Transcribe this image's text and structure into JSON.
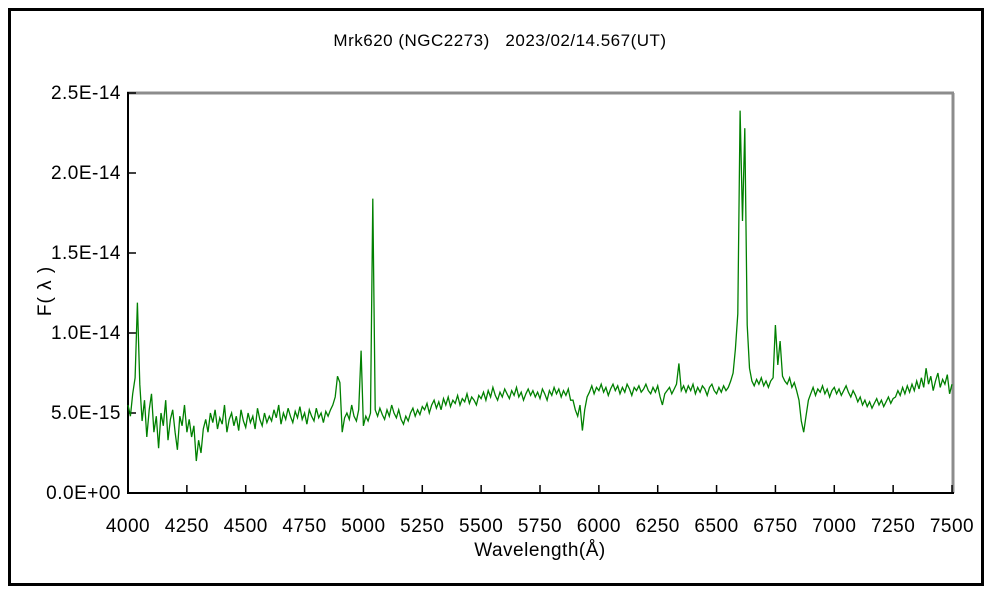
{
  "window": {
    "background_color": "#ffffff",
    "border_color": "#000000"
  },
  "chart": {
    "title": "Mrk620 (NGC2273)   2023/02/14.567(UT)",
    "line_color": "#008000",
    "axis_color": "#000000",
    "frame_color": "#8c8c8c",
    "x_axis": {
      "label": "Wavelength(Å)",
      "ticks": [
        {
          "value": 4000,
          "label": "4000"
        },
        {
          "value": 4250,
          "label": "4250"
        },
        {
          "value": 4500,
          "label": "4500"
        },
        {
          "value": 4750,
          "label": "4750"
        },
        {
          "value": 5000,
          "label": "5000"
        },
        {
          "value": 5250,
          "label": "5250"
        },
        {
          "value": 5500,
          "label": "5500"
        },
        {
          "value": 5750,
          "label": "5750"
        },
        {
          "value": 6000,
          "label": "6000"
        },
        {
          "value": 6250,
          "label": "6250"
        },
        {
          "value": 6500,
          "label": "6500"
        },
        {
          "value": 6750,
          "label": "6750"
        },
        {
          "value": 7000,
          "label": "7000"
        },
        {
          "value": 7250,
          "label": "7250"
        },
        {
          "value": 7500,
          "label": "7500"
        }
      ]
    },
    "y_axis": {
      "label": "F( λ )",
      "ticks": [
        {
          "value_1e16": 0,
          "label": "0.0E+00"
        },
        {
          "value_1e16": 50,
          "label": "5.0E-15"
        },
        {
          "value_1e16": 100,
          "label": "1.0E-14"
        },
        {
          "value_1e16": 150,
          "label": "1.5E-14"
        },
        {
          "value_1e16": 200,
          "label": "2.0E-14"
        },
        {
          "value_1e16": 250,
          "label": "2.5E-14"
        }
      ]
    }
  },
  "chart_data": {
    "type": "line",
    "title": "Mrk620 (NGC2273)   2023/02/14.567(UT)",
    "xlabel": "Wavelength(Å)",
    "ylabel": "F( λ )",
    "xlim": [
      4000,
      7500
    ],
    "ylim": [
      0,
      2.5e-14
    ],
    "grid": false,
    "legend": "none",
    "series_name": "Mrk620 spectrum",
    "x_start": 4000,
    "x_step": 10,
    "flux_scale": 1e-16,
    "notable_features": [
      {
        "wavelength": 4040,
        "flux": 1.19e-14,
        "kind": "noise spike"
      },
      {
        "wavelength": 4290,
        "flux": 2e-15,
        "kind": "absorption minimum (G band)"
      },
      {
        "wavelength": 4890,
        "flux": 7.3e-15,
        "kind": "Hβ emission"
      },
      {
        "wavelength": 4990,
        "flux": 8.9e-15,
        "kind": "[OIII]4959 emission"
      },
      {
        "wavelength": 5040,
        "flux": 1.84e-14,
        "kind": "[OIII]5007 emission"
      },
      {
        "wavelength": 5930,
        "flux": 3.9e-15,
        "kind": "Na D absorption"
      },
      {
        "wavelength": 6340,
        "flux": 8.1e-15,
        "kind": "[OI]6300 emission"
      },
      {
        "wavelength": 6600,
        "flux": 2.39e-14,
        "kind": "Hα emission peak"
      },
      {
        "wavelength": 6620,
        "flux": 2.28e-14,
        "kind": "[NII]6584 emission peak"
      },
      {
        "wavelength": 6750,
        "flux": 1.05e-14,
        "kind": "[SII] doublet"
      },
      {
        "wavelength": 6870,
        "flux": 3.8e-15,
        "kind": "atmospheric B-band absorption"
      }
    ],
    "flux_1e16": [
      55,
      48,
      62,
      72,
      119,
      68,
      45,
      58,
      35,
      52,
      62,
      38,
      48,
      28,
      50,
      42,
      58,
      33,
      46,
      52,
      38,
      27,
      48,
      42,
      55,
      38,
      46,
      35,
      42,
      20,
      33,
      25,
      40,
      46,
      38,
      50,
      44,
      52,
      40,
      47,
      43,
      55,
      38,
      46,
      50,
      42,
      48,
      39,
      52,
      45,
      41,
      50,
      44,
      48,
      40,
      53,
      46,
      42,
      50,
      44,
      48,
      45,
      52,
      47,
      55,
      43,
      50,
      46,
      53,
      48,
      44,
      51,
      47,
      54,
      46,
      50,
      43,
      52,
      48,
      45,
      53,
      47,
      50,
      44,
      51,
      48,
      52,
      55,
      60,
      73,
      69,
      38,
      47,
      50,
      46,
      55,
      48,
      45,
      52,
      89,
      42,
      48,
      45,
      50,
      184,
      52,
      48,
      53,
      49,
      46,
      52,
      48,
      55,
      50,
      47,
      52,
      46,
      43,
      48,
      45,
      50,
      53,
      48,
      52,
      49,
      54,
      52,
      56,
      50,
      55,
      58,
      53,
      57,
      52,
      59,
      55,
      60,
      54,
      58,
      56,
      61,
      55,
      59,
      57,
      62,
      56,
      60,
      58,
      55,
      61,
      59,
      63,
      58,
      64,
      60,
      66,
      61,
      58,
      63,
      60,
      65,
      62,
      59,
      64,
      61,
      66,
      60,
      63,
      58,
      62,
      65,
      61,
      64,
      60,
      63,
      59,
      65,
      62,
      58,
      64,
      61,
      66,
      62,
      65,
      60,
      64,
      61,
      65,
      58,
      58,
      52,
      48,
      55,
      39,
      52,
      60,
      63,
      67,
      62,
      66,
      64,
      68,
      63,
      66,
      61,
      65,
      68,
      64,
      67,
      62,
      66,
      63,
      68,
      65,
      61,
      66,
      64,
      67,
      63,
      65,
      68,
      64,
      62,
      66,
      63,
      67,
      60,
      55,
      62,
      64,
      66,
      62,
      65,
      68,
      81,
      64,
      67,
      63,
      67,
      64,
      68,
      62,
      66,
      63,
      67,
      65,
      61,
      66,
      68,
      64,
      62,
      66,
      63,
      67,
      64,
      66,
      70,
      75,
      90,
      112,
      239,
      170,
      228,
      105,
      78,
      70,
      67,
      71,
      68,
      72,
      67,
      70,
      66,
      70,
      72,
      105,
      80,
      95,
      73,
      70,
      68,
      72,
      66,
      69,
      64,
      58,
      45,
      38,
      48,
      58,
      62,
      66,
      61,
      65,
      63,
      67,
      62,
      65,
      60,
      64,
      66,
      62,
      65,
      61,
      64,
      67,
      63,
      60,
      64,
      61,
      57,
      60,
      55,
      58,
      54,
      57,
      53,
      56,
      59,
      55,
      58,
      54,
      57,
      60,
      56,
      59,
      60,
      64,
      61,
      66,
      62,
      67,
      63,
      68,
      64,
      70,
      65,
      72,
      66,
      78,
      68,
      73,
      64,
      70,
      75,
      66,
      71,
      68,
      74,
      62,
      68
    ]
  }
}
